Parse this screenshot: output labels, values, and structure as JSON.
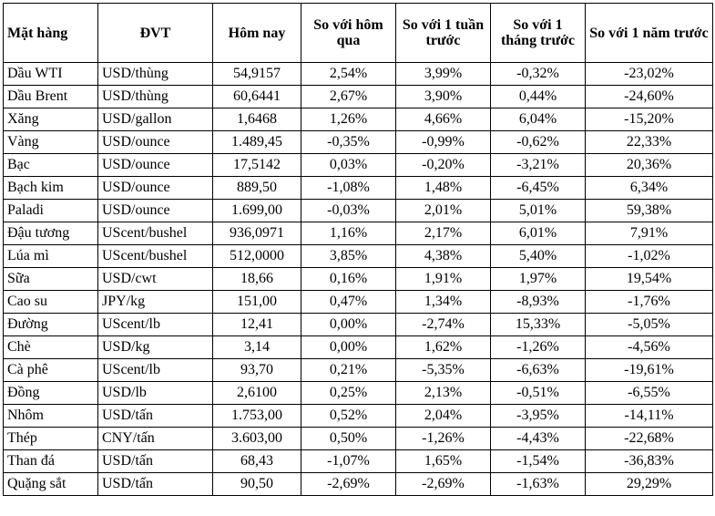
{
  "table": {
    "headers": [
      "Mặt hàng",
      "ĐVT",
      "Hôm nay",
      "So với hôm qua",
      "So với 1 tuần trước",
      "So với 1 tháng trước",
      "So với 1 năm trước"
    ],
    "rows": [
      [
        "Dầu WTI",
        "USD/thùng",
        "54,9157",
        "2,54%",
        "3,99%",
        "-0,32%",
        "-23,02%"
      ],
      [
        "Dầu Brent",
        "USD/thùng",
        "60,6441",
        "2,67%",
        "3,90%",
        "0,44%",
        "-24,60%"
      ],
      [
        "Xăng",
        "USD/gallon",
        "1,6468",
        "1,26%",
        "4,66%",
        "6,04%",
        "-15,20%"
      ],
      [
        "Vàng",
        "USD/ounce",
        "1.489,45",
        "-0,35%",
        "-0,99%",
        "-0,62%",
        "22,33%"
      ],
      [
        "Bạc",
        "USD/ounce",
        "17,5142",
        "0,03%",
        "-0,20%",
        "-3,21%",
        "20,36%"
      ],
      [
        "Bạch kim",
        "USD/ounce",
        "889,50",
        "-1,08%",
        "1,48%",
        "-6,45%",
        "6,34%"
      ],
      [
        "Paladi",
        "USD/ounce",
        "1.699,00",
        "-0,03%",
        "2,01%",
        "5,01%",
        "59,38%"
      ],
      [
        "Đậu tương",
        "UScent/bushel",
        "936,0971",
        "1,16%",
        "2,17%",
        "6,01%",
        "7,91%"
      ],
      [
        "Lúa mì",
        "UScent/bushel",
        "512,0000",
        "3,85%",
        "4,38%",
        "5,40%",
        "-1,02%"
      ],
      [
        "Sữa",
        "USD/cwt",
        "18,66",
        "0,16%",
        "1,91%",
        "1,97%",
        "19,54%"
      ],
      [
        "Cao su",
        "JPY/kg",
        "151,00",
        "0,47%",
        "1,34%",
        "-8,93%",
        "-1,76%"
      ],
      [
        "Đường",
        "UScent/lb",
        "12,41",
        "0,00%",
        "-2,74%",
        "15,33%",
        "-5,05%"
      ],
      [
        "Chè",
        "USD/kg",
        "3,14",
        "0,00%",
        "1,62%",
        "-1,26%",
        "-4,56%"
      ],
      [
        "Cà phê",
        "UScent/lb",
        "93,70",
        "0,21%",
        "-5,35%",
        "-6,63%",
        "-19,61%"
      ],
      [
        "Đồng",
        "USD/lb",
        "2,6100",
        "0,25%",
        "2,13%",
        "-0,51%",
        "-6,55%"
      ],
      [
        "Nhôm",
        "USD/tấn",
        "1.753,00",
        "0,52%",
        "2,04%",
        "-3,95%",
        "-14,11%"
      ],
      [
        "Thép",
        "CNY/tấn",
        "3.603,00",
        "0,50%",
        "-1,26%",
        "-4,43%",
        "-22,68%"
      ],
      [
        "Than đá",
        "USD/tấn",
        "68,43",
        "-1,07%",
        "1,65%",
        "-1,54%",
        "-36,83%"
      ],
      [
        "Quặng sắt",
        "USD/tấn",
        "90,50",
        "-2,69%",
        "-2,69%",
        "-1,63%",
        "29,29%"
      ]
    ]
  }
}
